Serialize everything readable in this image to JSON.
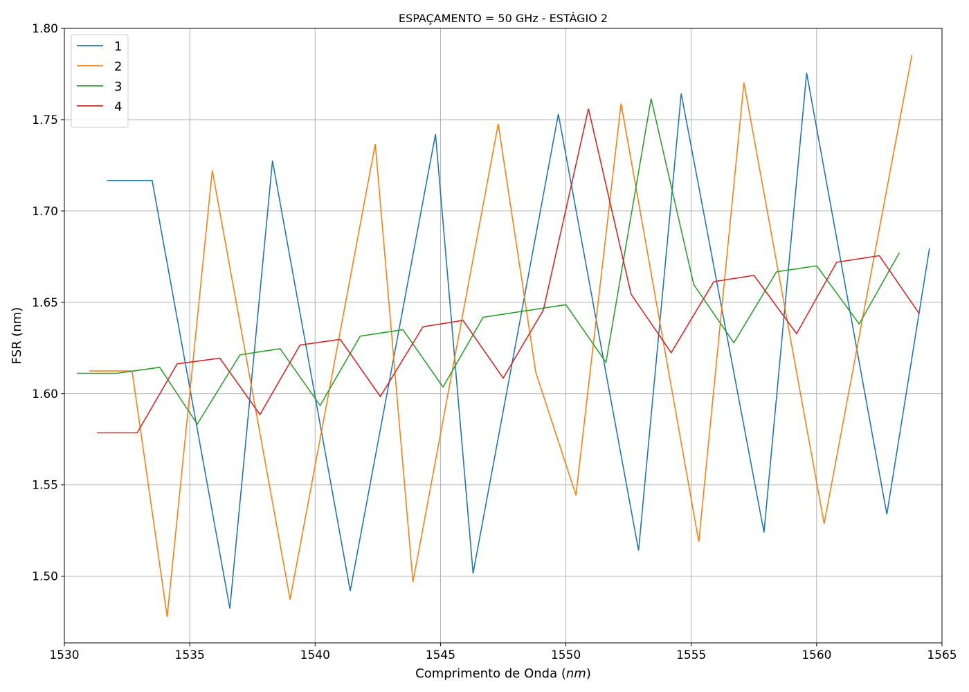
{
  "chart_data": {
    "type": "line",
    "title": "ESPAÇAMENTO = 50 GHz - ESTÁGIO 2",
    "xlabel_main": "Comprimento de Onda (",
    "xlabel_unit": "nm",
    "xlabel_close": ")",
    "ylabel": "FSR (nm)",
    "xlim": [
      1530,
      1565
    ],
    "ylim": [
      1.4635,
      1.8
    ],
    "xticks": [
      1530,
      1535,
      1540,
      1545,
      1550,
      1555,
      1560,
      1565
    ],
    "yticks": [
      1.5,
      1.55,
      1.6,
      1.65,
      1.7,
      1.75,
      1.8
    ],
    "xtick_labels": [
      "1530",
      "1535",
      "1540",
      "1545",
      "1550",
      "1555",
      "1560",
      "1565"
    ],
    "ytick_labels": [
      "1.50",
      "1.55",
      "1.60",
      "1.65",
      "1.70",
      "1.75",
      "1.80"
    ],
    "grid": true,
    "legend_position": "upper-left",
    "series": [
      {
        "name": "1",
        "color": "#1f77b4",
        "x": [
          1531.7,
          1533.5,
          1536.6,
          1538.3,
          1541.4,
          1544.8,
          1546.3,
          1549.7,
          1552.9,
          1554.6,
          1557.9,
          1559.6,
          1562.8,
          1564.5
        ],
        "y": [
          1.7167,
          1.7167,
          1.4823,
          1.7276,
          1.492,
          1.7421,
          1.5016,
          1.7531,
          1.5141,
          1.7643,
          1.524,
          1.7756,
          1.5339,
          1.6796
        ]
      },
      {
        "name": "2",
        "color": "#ff7f0e",
        "x": [
          1531.0,
          1532.7,
          1534.1,
          1535.9,
          1539.0,
          1542.4,
          1543.9,
          1547.3,
          1548.8,
          1550.4,
          1552.2,
          1555.3,
          1557.1,
          1560.3,
          1563.8
        ],
        "y": [
          1.6124,
          1.6124,
          1.4777,
          1.7222,
          1.4873,
          1.7367,
          1.4968,
          1.7477,
          1.6116,
          1.5444,
          1.7588,
          1.5188,
          1.7702,
          1.5287,
          1.7854
        ]
      },
      {
        "name": "3",
        "color": "#2ca02c",
        "x": [
          1530.5,
          1532.1,
          1533.8,
          1535.3,
          1537.0,
          1538.6,
          1540.2,
          1541.8,
          1543.5,
          1545.1,
          1546.7,
          1550.0,
          1551.6,
          1553.4,
          1555.1,
          1556.7,
          1558.4,
          1560.0,
          1561.7,
          1563.3
        ],
        "y": [
          1.6111,
          1.6111,
          1.6144,
          1.5833,
          1.6212,
          1.6246,
          1.5935,
          1.6315,
          1.635,
          1.6036,
          1.6418,
          1.6487,
          1.6171,
          1.7615,
          1.6597,
          1.6278,
          1.6667,
          1.67,
          1.6381,
          1.6772
        ]
      },
      {
        "name": "4",
        "color": "#d62728",
        "x": [
          1531.3,
          1532.9,
          1534.5,
          1536.2,
          1537.8,
          1539.4,
          1541.0,
          1542.6,
          1544.3,
          1545.9,
          1547.5,
          1549.1,
          1550.9,
          1552.6,
          1554.2,
          1555.9,
          1557.5,
          1559.2,
          1560.8,
          1562.5,
          1564.1
        ],
        "y": [
          1.5785,
          1.5785,
          1.6163,
          1.6194,
          1.5885,
          1.6266,
          1.6297,
          1.5984,
          1.6366,
          1.6401,
          1.6085,
          1.6457,
          1.756,
          1.6544,
          1.6224,
          1.6613,
          1.6647,
          1.6328,
          1.6719,
          1.6755,
          1.6436
        ]
      }
    ]
  }
}
